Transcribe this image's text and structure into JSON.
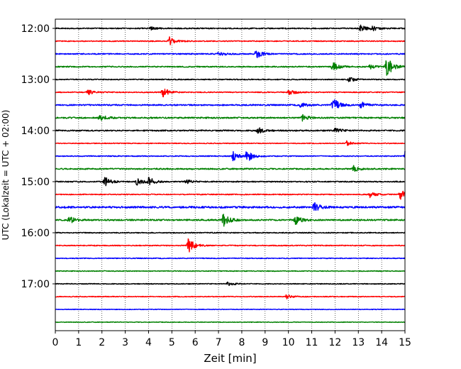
{
  "chart_data": {
    "type": "line",
    "xlabel": "Zeit  [min]",
    "ylabel": "UTC (Lokalzeit = UTC + 02:00)",
    "xlim": [
      0,
      15
    ],
    "x_ticks": [
      "0",
      "1",
      "2",
      "3",
      "4",
      "5",
      "6",
      "7",
      "8",
      "9",
      "10",
      "11",
      "12",
      "13",
      "14",
      "15"
    ],
    "y_ticks": [
      "12:00",
      "13:00",
      "14:00",
      "15:00",
      "16:00",
      "17:00"
    ],
    "trace_interval_minutes": 15,
    "grid": "vertical-dotted",
    "colors": [
      "#000000",
      "#ff0000",
      "#0000ff",
      "#008000"
    ],
    "traces": [
      {
        "start": "12:00",
        "color": "#000000",
        "noise": 0.35,
        "events": [
          {
            "t": 13.1,
            "amp": 0.6
          },
          {
            "t": 13.6,
            "amp": 0.4
          },
          {
            "t": 4.1,
            "amp": 0.3
          }
        ]
      },
      {
        "start": "12:15",
        "color": "#ff0000",
        "noise": 0.3,
        "events": [
          {
            "t": 4.9,
            "amp": 0.7
          }
        ]
      },
      {
        "start": "12:30",
        "color": "#0000ff",
        "noise": 0.35,
        "events": [
          {
            "t": 8.6,
            "amp": 0.8
          },
          {
            "t": 7.0,
            "amp": 0.4
          }
        ]
      },
      {
        "start": "12:45",
        "color": "#008000",
        "noise": 0.35,
        "events": [
          {
            "t": 14.2,
            "amp": 2.0
          },
          {
            "t": 11.9,
            "amp": 0.8
          },
          {
            "t": 13.5,
            "amp": 0.4
          }
        ]
      },
      {
        "start": "13:00",
        "color": "#000000",
        "noise": 0.3,
        "events": [
          {
            "t": 12.6,
            "amp": 0.5
          }
        ]
      },
      {
        "start": "13:15",
        "color": "#ff0000",
        "noise": 0.3,
        "events": [
          {
            "t": 4.6,
            "amp": 0.9
          },
          {
            "t": 1.4,
            "amp": 0.5
          },
          {
            "t": 10.0,
            "amp": 0.6
          }
        ]
      },
      {
        "start": "13:30",
        "color": "#0000ff",
        "noise": 0.4,
        "events": [
          {
            "t": 11.9,
            "amp": 1.4
          },
          {
            "t": 13.1,
            "amp": 0.6
          },
          {
            "t": 10.5,
            "amp": 0.5
          }
        ]
      },
      {
        "start": "13:45",
        "color": "#008000",
        "noise": 0.45,
        "events": [
          {
            "t": 1.9,
            "amp": 0.6
          },
          {
            "t": 10.6,
            "amp": 0.5
          }
        ]
      },
      {
        "start": "14:00",
        "color": "#000000",
        "noise": 0.4,
        "events": [
          {
            "t": 8.7,
            "amp": 0.6
          },
          {
            "t": 12.0,
            "amp": 0.5
          }
        ]
      },
      {
        "start": "14:15",
        "color": "#ff0000",
        "noise": 0.25,
        "events": [
          {
            "t": 12.5,
            "amp": 0.4
          }
        ]
      },
      {
        "start": "14:30",
        "color": "#0000ff",
        "noise": 0.3,
        "events": [
          {
            "t": 8.2,
            "amp": 1.2
          },
          {
            "t": 7.6,
            "amp": 0.9
          },
          {
            "t": 15.0,
            "amp": 1.0
          }
        ]
      },
      {
        "start": "14:45",
        "color": "#008000",
        "noise": 0.4,
        "events": [
          {
            "t": 12.8,
            "amp": 0.5
          }
        ]
      },
      {
        "start": "15:00",
        "color": "#000000",
        "noise": 0.35,
        "events": [
          {
            "t": 2.1,
            "amp": 0.9
          },
          {
            "t": 3.5,
            "amp": 0.8
          },
          {
            "t": 4.0,
            "amp": 0.8
          },
          {
            "t": 5.6,
            "amp": 0.4
          }
        ]
      },
      {
        "start": "15:15",
        "color": "#ff0000",
        "noise": 0.3,
        "events": [
          {
            "t": 14.8,
            "amp": 0.9
          },
          {
            "t": 13.5,
            "amp": 0.5
          }
        ]
      },
      {
        "start": "15:30",
        "color": "#0000ff",
        "noise": 0.55,
        "events": [
          {
            "t": 11.1,
            "amp": 0.8
          }
        ]
      },
      {
        "start": "15:45",
        "color": "#008000",
        "noise": 0.45,
        "events": [
          {
            "t": 7.2,
            "amp": 1.2
          },
          {
            "t": 10.3,
            "amp": 0.8
          },
          {
            "t": 0.6,
            "amp": 0.6
          }
        ]
      },
      {
        "start": "16:00",
        "color": "#000000",
        "noise": 0.3,
        "events": []
      },
      {
        "start": "16:15",
        "color": "#ff0000",
        "noise": 0.3,
        "events": [
          {
            "t": 5.7,
            "amp": 1.4
          }
        ]
      },
      {
        "start": "16:30",
        "color": "#0000ff",
        "noise": 0.25,
        "events": []
      },
      {
        "start": "16:45",
        "color": "#008000",
        "noise": 0.25,
        "events": []
      },
      {
        "start": "17:00",
        "color": "#000000",
        "noise": 0.25,
        "events": [
          {
            "t": 7.4,
            "amp": 0.4
          }
        ]
      },
      {
        "start": "17:15",
        "color": "#ff0000",
        "noise": 0.25,
        "events": [
          {
            "t": 9.9,
            "amp": 0.4
          }
        ]
      },
      {
        "start": "17:30",
        "color": "#0000ff",
        "noise": 0.2,
        "events": []
      },
      {
        "start": "17:45",
        "color": "#008000",
        "noise": 0.2,
        "events": []
      }
    ]
  }
}
